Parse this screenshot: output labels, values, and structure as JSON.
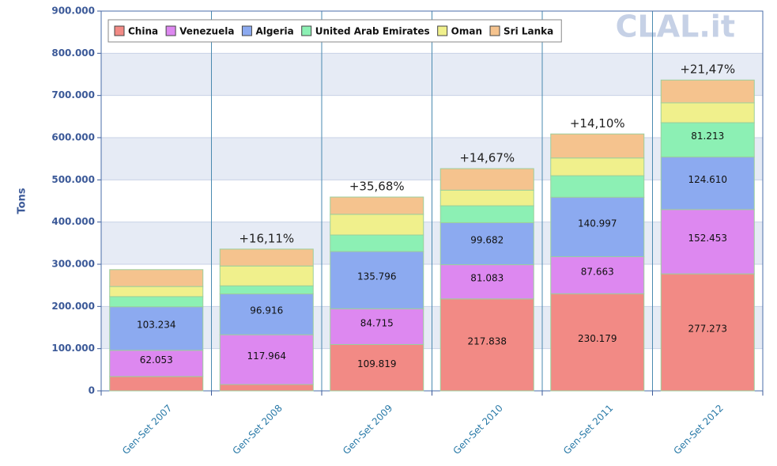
{
  "chart_data": {
    "type": "stacked_bar",
    "watermark": "CLAL.it",
    "y_label": "Tons",
    "categories": [
      "Gen-Set 2007",
      "Gen-Set 2008",
      "Gen-Set 2009",
      "Gen-Set 2010",
      "Gen-Set 2011",
      "Gen-Set 2012"
    ],
    "series": [
      {
        "name": "China",
        "color": "#f28a85",
        "values": [
          34000,
          15000,
          109819,
          217838,
          230179,
          277273
        ],
        "value_labels": [
          null,
          null,
          "109.819",
          "217.838",
          "230.179",
          "277.273"
        ]
      },
      {
        "name": "Venezuela",
        "color": "#dd88f0",
        "values": [
          62053,
          117964,
          84715,
          81083,
          87663,
          152453
        ],
        "value_labels": [
          "62.053",
          "117.964",
          "84.715",
          "81.083",
          "87.663",
          "152.453"
        ]
      },
      {
        "name": "Algeria",
        "color": "#8caaf0",
        "values": [
          103234,
          96916,
          135796,
          99682,
          140997,
          124610
        ],
        "value_labels": [
          "103.234",
          "96.916",
          "135.796",
          "99.682",
          "140.997",
          "124.610"
        ]
      },
      {
        "name": "United Arab Emirates",
        "color": "#8cf0b4",
        "values": [
          24000,
          19000,
          39000,
          40000,
          51000,
          81213
        ],
        "value_labels": [
          null,
          null,
          null,
          null,
          null,
          "81.213"
        ]
      },
      {
        "name": "Oman",
        "color": "#f0f08c",
        "values": [
          24000,
          47000,
          49000,
          37000,
          42000,
          47000
        ],
        "value_labels": [
          null,
          null,
          null,
          null,
          null,
          null
        ]
      },
      {
        "name": "Sri Lanka",
        "color": "#f5c38e",
        "values": [
          40000,
          40000,
          41000,
          51000,
          57000,
          54000
        ],
        "value_labels": [
          null,
          null,
          null,
          null,
          null,
          null
        ]
      }
    ],
    "annotations": [
      null,
      "+16,11%",
      "+35,68%",
      "+14,67%",
      "+14,10%",
      "+21,47%"
    ],
    "ylim": [
      0,
      900000
    ],
    "yticks": [
      0,
      {
        "value": 100000,
        "label": "100.000"
      },
      {
        "value": 200000,
        "label": "200.000"
      },
      {
        "value": 300000,
        "label": "300.000"
      },
      {
        "value": 400000,
        "label": "400.000"
      },
      {
        "value": 500000,
        "label": "500.000"
      },
      {
        "value": 600000,
        "label": "600.000"
      },
      {
        "value": 700000,
        "label": "700.000"
      },
      {
        "value": 800000,
        "label": "800.000"
      },
      {
        "value": 900000,
        "label": "900.000"
      }
    ],
    "legend": "top-left",
    "grid": true
  }
}
